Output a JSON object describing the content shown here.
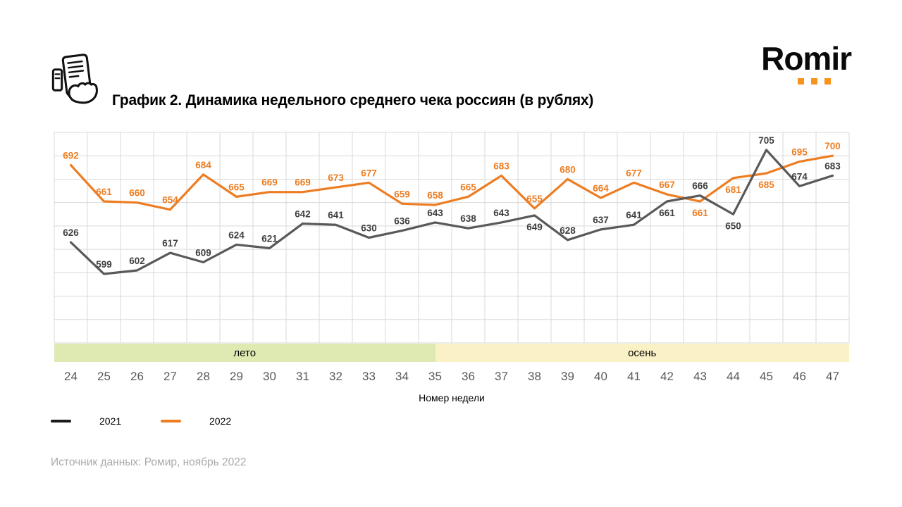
{
  "header": {
    "logo_text": "Romir"
  },
  "chart_data": {
    "type": "line",
    "title": "График 2. Динамика недельного среднего чека россиян (в рублях)",
    "xlabel": "Номер недели",
    "x": [
      24,
      25,
      26,
      27,
      28,
      29,
      30,
      31,
      32,
      33,
      34,
      35,
      36,
      37,
      38,
      39,
      40,
      41,
      42,
      43,
      44,
      45,
      46,
      47
    ],
    "series": [
      {
        "name": "2021",
        "color": "#595959",
        "label_color": "#3f3f3f",
        "values": [
          626,
          599,
          602,
          617,
          609,
          624,
          621,
          642,
          641,
          630,
          636,
          643,
          638,
          643,
          649,
          628,
          637,
          641,
          661,
          666,
          650,
          705,
          674,
          683
        ],
        "labels_below": [
          38,
          42,
          44
        ]
      },
      {
        "name": "2022",
        "color": "#ED7D22",
        "label_color": "#ED7D22",
        "values": [
          692,
          661,
          660,
          654,
          684,
          665,
          669,
          669,
          673,
          677,
          659,
          658,
          665,
          683,
          655,
          680,
          664,
          677,
          667,
          661,
          681,
          685,
          695,
          700
        ],
        "labels_below": [
          43,
          44,
          45
        ]
      }
    ],
    "ylim": [
      540,
      720
    ],
    "grid": true,
    "grid_color": "#d9d9d9",
    "bands": [
      {
        "label": "лето",
        "color": "#dfe9b2",
        "from": 24,
        "to": 35
      },
      {
        "label": "осень",
        "color": "#fbf1c6",
        "from": 36,
        "to": 47
      }
    ],
    "legend_position": "bottom-left"
  },
  "legend": [
    {
      "label": "2021",
      "color": "#1a1a1a"
    },
    {
      "label": "2022",
      "color": "#ED7D22"
    }
  ],
  "logo_dot_color": "#f7941d",
  "source": "Источник данных: Ромир, ноябрь 2022"
}
